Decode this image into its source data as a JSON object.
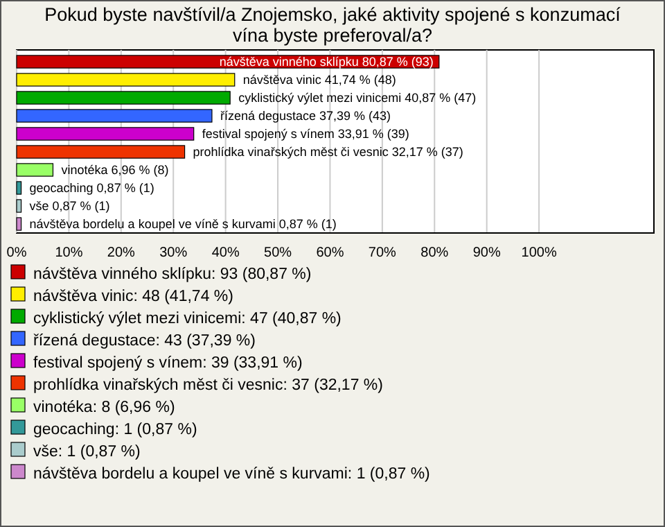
{
  "chart_data": {
    "type": "bar",
    "orientation": "horizontal",
    "title": "Pokud byste navštívil/a Znojemsko, jaké aktivity spojené s konzumací vína byste preferoval/a?",
    "categories": [
      "návštěva vinného sklípku",
      "návštěva vinic",
      "cyklistický výlet mezi vinicemi",
      "řízená degustace",
      "festival spojený s vínem",
      "prohlídka vinařských měst či vesnic",
      "vinotéka",
      "geocaching",
      "vše",
      "návštěva bordelu a koupel ve víně s kurvami"
    ],
    "values": [
      80.87,
      41.74,
      40.87,
      37.39,
      33.91,
      32.17,
      6.96,
      0.87,
      0.87,
      0.87
    ],
    "value_labels": [
      "80,87 % (93)",
      "41,74 % (48)",
      "40,87 % (47)",
      "37,39 % (43)",
      "33,91 % (39)",
      "32,17 % (37)",
      "6,96 % (8)",
      "0,87 % (1)",
      "0,87 % (1)",
      "0,87 % (1)"
    ],
    "colors": [
      "#cc0000",
      "#ffee00",
      "#00aa00",
      "#3366ff",
      "#cc00cc",
      "#ee3300",
      "#99ff66",
      "#339999",
      "#aacccc",
      "#cc88cc"
    ],
    "xlim": [
      0,
      122
    ],
    "xticks": [
      {
        "value": 0,
        "label": "0%"
      },
      {
        "value": 10,
        "label": "10%"
      },
      {
        "value": 20,
        "label": "20%"
      },
      {
        "value": 30,
        "label": "30%"
      },
      {
        "value": 40,
        "label": "40%"
      },
      {
        "value": 50,
        "label": "50%"
      },
      {
        "value": 60,
        "label": "60%"
      },
      {
        "value": 70,
        "label": "70%"
      },
      {
        "value": 80,
        "label": "80%"
      },
      {
        "value": 90,
        "label": "90%"
      },
      {
        "value": 100,
        "label": "100%"
      }
    ],
    "grid": "x",
    "annotations": [
      "návštěva vinného sklípku: 93 (80,87 %)",
      "návštěva vinic: 48 (41,74 %)",
      "cyklistický výlet mezi vinicemi: 47 (40,87 %)",
      "řízená degustace: 43 (37,39 %)",
      "festival spojený s vínem: 39 (33,91 %)",
      "prohlídka vinařských měst či vesnic: 37 (32,17 %)",
      "vinotéka: 8 (6,96 %)",
      "geocaching: 1 (0,87 %)",
      "vše: 1 (0,87 %)",
      "návštěva bordelu a koupel ve víně s kurvami: 1 (0,87 %)"
    ]
  }
}
